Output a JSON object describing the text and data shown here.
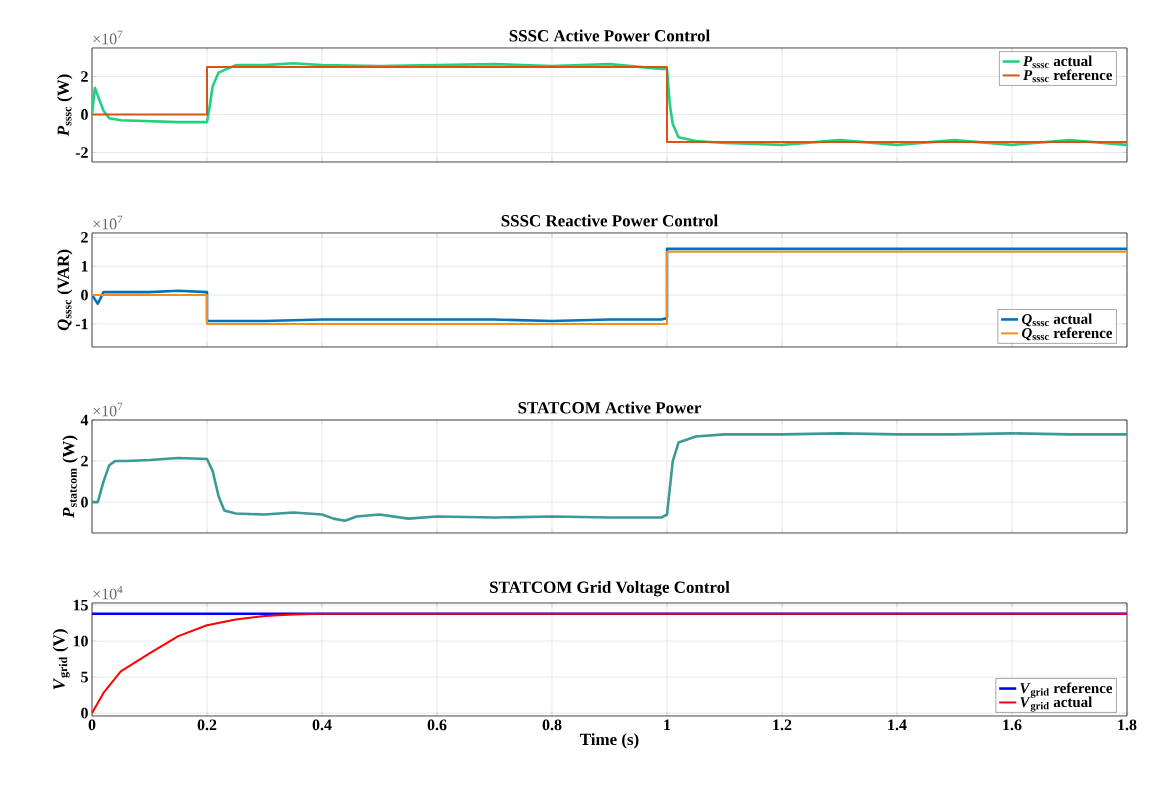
{
  "chart_data": [
    {
      "type": "line",
      "title": "SSSC Active Power Control",
      "ylabel": "*P*$_{sssc}$ (W)",
      "annotations": [
        "×10$^{7}$"
      ],
      "xlim": [
        0,
        1.8
      ],
      "xticks": [
        0,
        0.2,
        0.4,
        0.6,
        0.8,
        1,
        1.2,
        1.4,
        1.6,
        1.8
      ],
      "ylim": [
        -2.5,
        3.5
      ],
      "yticks": [
        -2,
        0,
        2
      ],
      "grid": true,
      "legend": "top right",
      "tick_labels": "y",
      "marker": "none",
      "line_style": "solid",
      "series": [
        {
          "name": "*P*$_{sssc}$ actual",
          "color": "#22d17f",
          "x": [
            0,
            0.005,
            0.01,
            0.02,
            0.03,
            0.05,
            0.1,
            0.15,
            0.19,
            0.2,
            0.205,
            0.21,
            0.22,
            0.25,
            0.3,
            0.35,
            0.4,
            0.5,
            0.6,
            0.7,
            0.8,
            0.9,
            0.99,
            1.0,
            1.005,
            1.01,
            1.02,
            1.05,
            1.1,
            1.2,
            1.3,
            1.4,
            1.5,
            1.6,
            1.7,
            1.8
          ],
          "values": [
            0,
            1.4,
            1.0,
            0.2,
            -0.2,
            -0.3,
            -0.35,
            -0.4,
            -0.4,
            -0.4,
            0.5,
            1.5,
            2.2,
            2.6,
            2.6,
            2.7,
            2.6,
            2.55,
            2.6,
            2.65,
            2.55,
            2.65,
            2.4,
            2.4,
            0.5,
            -0.5,
            -1.2,
            -1.4,
            -1.5,
            -1.6,
            -1.35,
            -1.6,
            -1.35,
            -1.6,
            -1.35,
            -1.6
          ]
        },
        {
          "name": "*P*$_{sssc}$ reference",
          "color": "#d95319",
          "x": [
            0,
            0.2,
            0.2,
            1.0,
            1.0,
            1.8
          ],
          "values": [
            0,
            0,
            2.5,
            2.5,
            -1.45,
            -1.45
          ]
        }
      ]
    },
    {
      "type": "line",
      "title": "SSSC Reactive Power Control",
      "ylabel": "*Q*$_{sssc}$ (VAR)",
      "annotations": [
        "×10$^{7}$"
      ],
      "xlim": [
        0,
        1.8
      ],
      "xticks": [
        0,
        0.2,
        0.4,
        0.6,
        0.8,
        1,
        1.2,
        1.4,
        1.6,
        1.8
      ],
      "ylim": [
        -1.8,
        2.15
      ],
      "yticks": [
        -1,
        0,
        1,
        2
      ],
      "grid": true,
      "legend": "bottom right",
      "tick_labels": "y",
      "marker": "none",
      "line_style": "solid",
      "series": [
        {
          "name": "*Q*$_{sssc}$ actual",
          "color": "#0072bd",
          "x": [
            0,
            0.01,
            0.02,
            0.05,
            0.1,
            0.15,
            0.2,
            0.2,
            0.3,
            0.4,
            0.5,
            0.6,
            0.7,
            0.8,
            0.9,
            0.99,
            1.0,
            1.0,
            1.1,
            1.2,
            1.3,
            1.4,
            1.5,
            1.6,
            1.7,
            1.8
          ],
          "values": [
            0,
            -0.3,
            0.1,
            0.1,
            0.1,
            0.15,
            0.1,
            -0.9,
            -0.9,
            -0.85,
            -0.85,
            -0.85,
            -0.85,
            -0.9,
            -0.85,
            -0.85,
            -0.8,
            1.6,
            1.6,
            1.6,
            1.6,
            1.6,
            1.6,
            1.6,
            1.6,
            1.6
          ]
        },
        {
          "name": "*Q*$_{sssc}$ reference",
          "color": "#f28e1c",
          "x": [
            0,
            0.2,
            0.2,
            1.0,
            1.0,
            1.8
          ],
          "values": [
            0,
            0,
            -1,
            -1,
            1.5,
            1.5
          ]
        }
      ]
    },
    {
      "type": "line",
      "title": "STATCOM Active Power",
      "ylabel": "*P*$_{statcom}$ (W)",
      "annotations": [
        "×10$^{7}$"
      ],
      "xlim": [
        0,
        1.8
      ],
      "xticks": [
        0,
        0.2,
        0.4,
        0.6,
        0.8,
        1,
        1.2,
        1.4,
        1.6,
        1.8
      ],
      "ylim": [
        -1.5,
        4
      ],
      "yticks": [
        0,
        2,
        4
      ],
      "grid": true,
      "tick_labels": "y",
      "marker": "none",
      "line_style": "solid",
      "series": [
        {
          "color": "#3a9a96",
          "x": [
            0,
            0.01,
            0.02,
            0.03,
            0.04,
            0.06,
            0.1,
            0.15,
            0.2,
            0.21,
            0.22,
            0.23,
            0.25,
            0.3,
            0.35,
            0.4,
            0.42,
            0.44,
            0.46,
            0.5,
            0.55,
            0.6,
            0.7,
            0.8,
            0.9,
            0.99,
            1.0,
            1.01,
            1.02,
            1.05,
            1.1,
            1.2,
            1.3,
            1.4,
            1.5,
            1.6,
            1.7,
            1.8
          ],
          "values": [
            0,
            0,
            1.0,
            1.8,
            2.0,
            2.0,
            2.05,
            2.15,
            2.1,
            1.5,
            0.3,
            -0.4,
            -0.55,
            -0.6,
            -0.5,
            -0.6,
            -0.8,
            -0.9,
            -0.7,
            -0.6,
            -0.8,
            -0.7,
            -0.75,
            -0.7,
            -0.75,
            -0.75,
            -0.6,
            2.0,
            2.9,
            3.2,
            3.3,
            3.3,
            3.35,
            3.3,
            3.3,
            3.35,
            3.3,
            3.3
          ]
        }
      ]
    },
    {
      "type": "line",
      "title": "STATCOM Grid Voltage Control",
      "xlabel": "Time (s)",
      "ylabel": "*V*$_{grid}$ (V)",
      "annotations": [
        "×10$^{4}$"
      ],
      "xlim": [
        0,
        1.8
      ],
      "xticks": [
        0,
        0.2,
        0.4,
        0.6,
        0.8,
        1,
        1.2,
        1.4,
        1.6,
        1.8
      ],
      "ylim": [
        -0.4,
        15.3
      ],
      "yticks": [
        0,
        5,
        10,
        15
      ],
      "grid": true,
      "legend": "bottom right",
      "marker": "none",
      "line_style": "solid",
      "series": [
        {
          "name": "*V*$_{grid}$ reference",
          "color": "#0000ff",
          "x": [
            0,
            1.8
          ],
          "values": [
            13.8,
            13.8
          ]
        },
        {
          "name": "*V*$_{grid}$ actual",
          "color": "#ff0000",
          "x": [
            0,
            0.02,
            0.05,
            0.1,
            0.15,
            0.2,
            0.25,
            0.3,
            0.35,
            0.4,
            1.8
          ],
          "values": [
            0,
            2.8,
            5.8,
            8.3,
            10.7,
            12.2,
            13.0,
            13.5,
            13.7,
            13.8,
            13.8
          ]
        }
      ]
    }
  ]
}
